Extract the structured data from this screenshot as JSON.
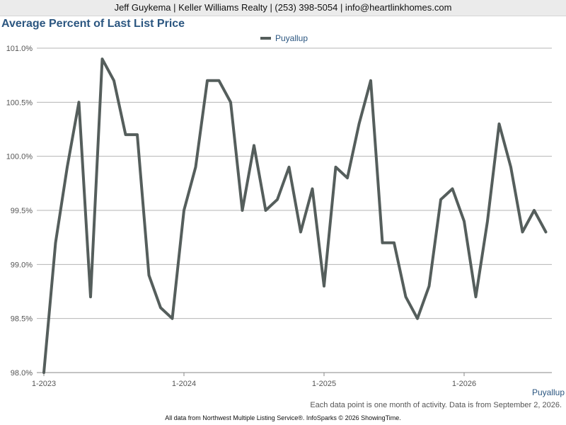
{
  "header": {
    "contact": "Jeff Guykema | Keller Williams Realty | (253) 398-5054 | info@heartlinkhomes.com"
  },
  "footer": {
    "series_tag": "Puyallup",
    "note": "Each data point is one month of activity. Data is from September 2, 2026.",
    "source": "All data from Northwest Multiple Listing Service®. InfoSparks © 2026 ShowingTime."
  },
  "colors": {
    "title": "#2b5680",
    "line": "#555e5c",
    "grid": "#b5b5b5"
  },
  "chart_data": {
    "type": "line",
    "title": "Average Percent of Last List Price",
    "legend_position": "top-center",
    "grid": true,
    "ylim": [
      98.0,
      101.0
    ],
    "y_ticks": [
      98.0,
      98.5,
      99.0,
      99.5,
      100.0,
      100.5,
      101.0
    ],
    "y_tick_labels": [
      "98.0%",
      "98.5%",
      "99.0%",
      "99.5%",
      "100.0%",
      "100.5%",
      "101.0%"
    ],
    "x_tick_labels": [
      "1-2023",
      "1-2024",
      "1-2025",
      "1-2026"
    ],
    "x": [
      "2023-01",
      "2023-02",
      "2023-03",
      "2023-04",
      "2023-05",
      "2023-06",
      "2023-07",
      "2023-08",
      "2023-09",
      "2023-10",
      "2023-11",
      "2023-12",
      "2024-01",
      "2024-02",
      "2024-03",
      "2024-04",
      "2024-05",
      "2024-06",
      "2024-07",
      "2024-08",
      "2024-09",
      "2024-10",
      "2024-11",
      "2024-12",
      "2025-01",
      "2025-02",
      "2025-03",
      "2025-04",
      "2025-05",
      "2025-06",
      "2025-07",
      "2025-08",
      "2025-09",
      "2025-10",
      "2025-11",
      "2025-12",
      "2026-01",
      "2026-02",
      "2026-03",
      "2026-04",
      "2026-05",
      "2026-06",
      "2026-07",
      "2026-08"
    ],
    "series": [
      {
        "name": "Puyallup",
        "values": [
          98.0,
          99.2,
          99.9,
          100.5,
          98.7,
          100.9,
          100.7,
          100.2,
          100.2,
          98.9,
          98.6,
          98.5,
          99.5,
          99.9,
          100.7,
          100.7,
          100.5,
          99.5,
          100.1,
          99.5,
          99.6,
          99.9,
          99.3,
          99.7,
          98.8,
          99.9,
          99.8,
          100.3,
          100.7,
          99.2,
          99.2,
          98.7,
          98.5,
          98.8,
          99.6,
          99.7,
          99.4,
          98.7,
          99.4,
          100.3,
          99.9,
          99.3,
          99.5,
          99.3
        ]
      }
    ]
  }
}
